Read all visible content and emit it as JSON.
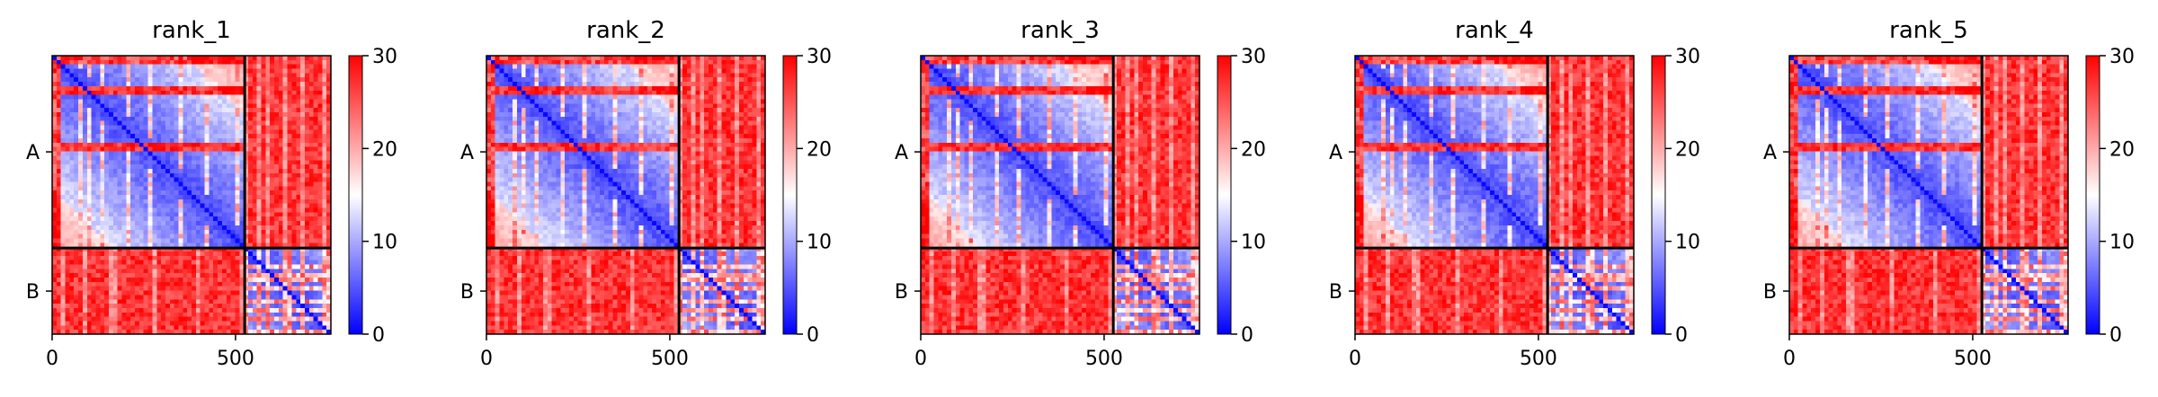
{
  "chart_data": {
    "type": "heatmap",
    "colormap": {
      "name": "bwr",
      "low_color": "#0000ff",
      "mid_color": "#ffffff",
      "high_color": "#ff0000",
      "range": [
        0,
        30
      ],
      "ticks": [
        0,
        10,
        20,
        30
      ]
    },
    "axes": {
      "x_range": [
        0,
        760
      ],
      "x_ticks": [
        0,
        500
      ],
      "y_tick_labels": [
        "A",
        "B"
      ],
      "chain_boundary": 525
    },
    "panels": [
      {
        "title": "rank_1"
      },
      {
        "title": "rank_2"
      },
      {
        "title": "rank_3"
      },
      {
        "title": "rank_4"
      },
      {
        "title": "rank_5"
      }
    ]
  }
}
